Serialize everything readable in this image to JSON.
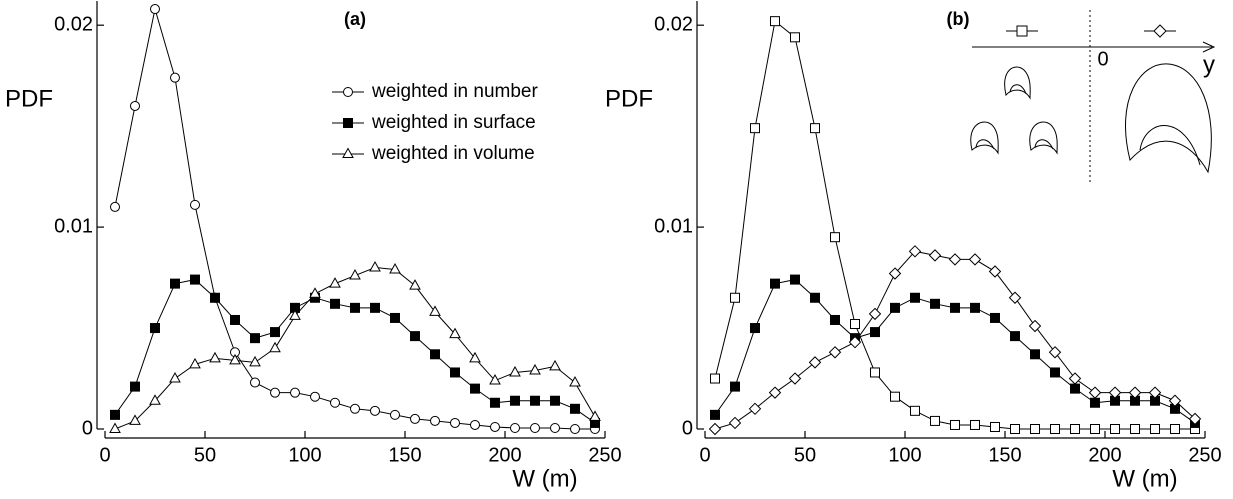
{
  "chart_data": [
    {
      "type": "line",
      "panel_label": "(a)",
      "ylabel": "PDF",
      "xlabel": "W (m)",
      "x": [
        5,
        15,
        25,
        35,
        45,
        55,
        65,
        75,
        85,
        95,
        105,
        115,
        125,
        135,
        145,
        155,
        165,
        175,
        185,
        195,
        205,
        215,
        225,
        235,
        245
      ],
      "xlim": [
        0,
        250
      ],
      "xticks": [
        0,
        50,
        100,
        150,
        200,
        250
      ],
      "ylim": [
        0,
        0.021
      ],
      "yticks": [
        0,
        0.01,
        0.02
      ],
      "legend": "upper center",
      "series": [
        {
          "name": "weighted in number",
          "color": "#000000",
          "marker": "circle",
          "fill": "open",
          "values": [
            0.011,
            0.016,
            0.0208,
            0.0174,
            0.0111,
            0.0065,
            0.0038,
            0.0023,
            0.0018,
            0.0018,
            0.0016,
            0.0013,
            0.001,
            0.0009,
            0.0007,
            0.0005,
            0.0004,
            0.0003,
            0.0002,
            0.0001,
            5e-05,
            5e-05,
            5e-05,
            0,
            0
          ]
        },
        {
          "name": "weighted in surface",
          "color": "#000000",
          "marker": "square",
          "fill": "filled",
          "values": [
            0.0007,
            0.0021,
            0.005,
            0.0072,
            0.0074,
            0.0065,
            0.0054,
            0.0045,
            0.0048,
            0.006,
            0.0065,
            0.0062,
            0.006,
            0.006,
            0.0055,
            0.0046,
            0.0037,
            0.0028,
            0.002,
            0.0013,
            0.0014,
            0.0014,
            0.0014,
            0.001,
            0.0003
          ]
        },
        {
          "name": "weighted in volume",
          "color": "#000000",
          "marker": "triangle",
          "fill": "open",
          "values": [
            0,
            0.0004,
            0.0014,
            0.0025,
            0.0032,
            0.0035,
            0.0034,
            0.0033,
            0.004,
            0.0056,
            0.0067,
            0.0072,
            0.0076,
            0.008,
            0.0079,
            0.0071,
            0.0058,
            0.0047,
            0.0035,
            0.0024,
            0.0028,
            0.0029,
            0.0031,
            0.0023,
            0.0006
          ]
        }
      ]
    },
    {
      "type": "line",
      "panel_label": "(b)",
      "ylabel": "PDF",
      "xlabel": "W (m)",
      "inset_labels": [
        "0",
        "y"
      ],
      "x": [
        5,
        15,
        25,
        35,
        45,
        55,
        65,
        75,
        85,
        95,
        105,
        115,
        125,
        135,
        145,
        155,
        165,
        175,
        185,
        195,
        205,
        215,
        225,
        235,
        245
      ],
      "xlim": [
        0,
        250
      ],
      "xticks": [
        0,
        50,
        100,
        150,
        200,
        250
      ],
      "ylim": [
        0,
        0.021
      ],
      "yticks": [
        0,
        0.01,
        0.02
      ],
      "series": [
        {
          "color": "#000000",
          "marker": "square",
          "fill": "open",
          "values": [
            0.0025,
            0.0065,
            0.0149,
            0.0202,
            0.0194,
            0.0149,
            0.0095,
            0.0052,
            0.0028,
            0.0016,
            0.0009,
            0.0004,
            0.0002,
            0.0002,
            0.0001,
            0,
            0,
            0,
            0,
            0,
            0,
            0,
            0,
            0,
            0
          ]
        },
        {
          "color": "#000000",
          "marker": "square",
          "fill": "filled",
          "values": [
            0.0007,
            0.0021,
            0.005,
            0.0072,
            0.0074,
            0.0065,
            0.0054,
            0.0045,
            0.0048,
            0.006,
            0.0065,
            0.0062,
            0.006,
            0.006,
            0.0055,
            0.0046,
            0.0037,
            0.0028,
            0.002,
            0.0013,
            0.0014,
            0.0014,
            0.0014,
            0.001,
            0.0003
          ]
        },
        {
          "color": "#000000",
          "marker": "diamond",
          "fill": "open",
          "values": [
            0,
            0.0003,
            0.001,
            0.0018,
            0.0025,
            0.0033,
            0.0038,
            0.0043,
            0.0057,
            0.0077,
            0.0088,
            0.0086,
            0.0084,
            0.0084,
            0.0078,
            0.0065,
            0.0051,
            0.0038,
            0.0025,
            0.0018,
            0.0018,
            0.0018,
            0.0018,
            0.0014,
            0.0005
          ]
        }
      ]
    }
  ]
}
